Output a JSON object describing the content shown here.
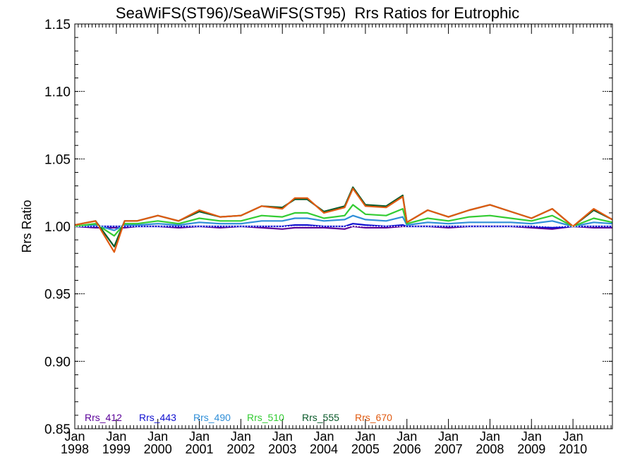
{
  "chart_data": {
    "type": "line",
    "title": "SeaWiFS(ST96)/SeaWiFS(ST95)  Rrs Ratios for Eutrophic",
    "xlabel": "",
    "ylabel": "Rrs Ratio",
    "ylim": [
      0.85,
      1.15
    ],
    "xlim": [
      1998.0,
      2010.95
    ],
    "yticks": [
      "0.85",
      "0.90",
      "0.95",
      "1.00",
      "1.05",
      "1.10",
      "1.15"
    ],
    "xticks": [
      {
        "top": "Jan",
        "bottom": "1998",
        "x": 1998
      },
      {
        "top": "Jan",
        "bottom": "1999",
        "x": 1999
      },
      {
        "top": "Jan",
        "bottom": "2000",
        "x": 2000
      },
      {
        "top": "Jan",
        "bottom": "2001",
        "x": 2001
      },
      {
        "top": "Jan",
        "bottom": "2002",
        "x": 2002
      },
      {
        "top": "Jan",
        "bottom": "2003",
        "x": 2003
      },
      {
        "top": "Jan",
        "bottom": "2004",
        "x": 2004
      },
      {
        "top": "Jan",
        "bottom": "2005",
        "x": 2005
      },
      {
        "top": "Jan",
        "bottom": "2006",
        "x": 2006
      },
      {
        "top": "Jan",
        "bottom": "2007",
        "x": 2007
      },
      {
        "top": "Jan",
        "bottom": "2008",
        "x": 2008
      },
      {
        "top": "Jan",
        "bottom": "2009",
        "x": 2009
      },
      {
        "top": "Jan",
        "bottom": "2010",
        "x": 2010
      }
    ],
    "reference_line": {
      "y": 1.0,
      "style": "dotted",
      "color": "#ffffff"
    },
    "legend_placement": "bottom-left",
    "series": [
      {
        "name": "Rrs_412",
        "color": "#5a0099",
        "points": [
          [
            1998.0,
            1.0
          ],
          [
            1998.5,
            0.999
          ],
          [
            1998.95,
            0.999
          ],
          [
            1999.2,
            0.999
          ],
          [
            1999.5,
            1.0
          ],
          [
            2000.0,
            1.0
          ],
          [
            2000.5,
            0.999
          ],
          [
            2001.0,
            1.0
          ],
          [
            2001.5,
            0.999
          ],
          [
            2002.0,
            1.0
          ],
          [
            2002.5,
            0.999
          ],
          [
            2003.0,
            0.998
          ],
          [
            2003.3,
            0.999
          ],
          [
            2003.6,
            0.999
          ],
          [
            2004.0,
            0.999
          ],
          [
            2004.5,
            0.998
          ],
          [
            2004.7,
            1.0
          ],
          [
            2005.0,
            0.999
          ],
          [
            2005.5,
            0.999
          ],
          [
            2005.9,
            1.0
          ],
          [
            2006.0,
            1.0
          ],
          [
            2006.5,
            1.0
          ],
          [
            2007.0,
            0.999
          ],
          [
            2007.5,
            1.0
          ],
          [
            2008.0,
            1.0
          ],
          [
            2008.5,
            1.0
          ],
          [
            2009.0,
            0.999
          ],
          [
            2009.5,
            0.998
          ],
          [
            2010.0,
            1.0
          ],
          [
            2010.5,
            0.999
          ],
          [
            2010.95,
            0.999
          ]
        ]
      },
      {
        "name": "Rrs_443",
        "color": "#1010d0",
        "points": [
          [
            1998.0,
            1.0
          ],
          [
            1998.5,
            1.0
          ],
          [
            1998.95,
            1.0
          ],
          [
            1999.2,
            1.0
          ],
          [
            1999.5,
            1.0
          ],
          [
            2000.0,
            1.0
          ],
          [
            2000.5,
            1.0
          ],
          [
            2001.0,
            1.0
          ],
          [
            2001.5,
            1.0
          ],
          [
            2002.0,
            1.0
          ],
          [
            2002.5,
            1.0
          ],
          [
            2003.0,
            1.0
          ],
          [
            2003.3,
            1.001
          ],
          [
            2003.6,
            1.001
          ],
          [
            2004.0,
            1.0
          ],
          [
            2004.5,
            1.0
          ],
          [
            2004.7,
            1.002
          ],
          [
            2005.0,
            1.001
          ],
          [
            2005.5,
            1.0
          ],
          [
            2005.9,
            1.001
          ],
          [
            2006.0,
            1.0
          ],
          [
            2006.5,
            1.0
          ],
          [
            2007.0,
            1.0
          ],
          [
            2007.5,
            1.0
          ],
          [
            2008.0,
            1.0
          ],
          [
            2008.5,
            1.0
          ],
          [
            2009.0,
            1.0
          ],
          [
            2009.5,
            0.999
          ],
          [
            2010.0,
            1.0
          ],
          [
            2010.5,
            1.0
          ],
          [
            2010.95,
            1.0
          ]
        ]
      },
      {
        "name": "Rrs_490",
        "color": "#2f8fd8",
        "points": [
          [
            1998.0,
            1.0
          ],
          [
            1998.5,
            1.001
          ],
          [
            1998.95,
            0.997
          ],
          [
            1999.2,
            1.001
          ],
          [
            1999.5,
            1.001
          ],
          [
            2000.0,
            1.002
          ],
          [
            2000.5,
            1.001
          ],
          [
            2001.0,
            1.003
          ],
          [
            2001.5,
            1.002
          ],
          [
            2002.0,
            1.002
          ],
          [
            2002.5,
            1.004
          ],
          [
            2003.0,
            1.004
          ],
          [
            2003.3,
            1.006
          ],
          [
            2003.6,
            1.006
          ],
          [
            2004.0,
            1.004
          ],
          [
            2004.5,
            1.005
          ],
          [
            2004.7,
            1.008
          ],
          [
            2005.0,
            1.005
          ],
          [
            2005.5,
            1.004
          ],
          [
            2005.9,
            1.007
          ],
          [
            2006.0,
            1.001
          ],
          [
            2006.5,
            1.003
          ],
          [
            2007.0,
            1.002
          ],
          [
            2007.5,
            1.003
          ],
          [
            2008.0,
            1.003
          ],
          [
            2008.5,
            1.003
          ],
          [
            2009.0,
            1.002
          ],
          [
            2009.5,
            1.004
          ],
          [
            2010.0,
            1.0
          ],
          [
            2010.5,
            1.003
          ],
          [
            2010.95,
            1.002
          ]
        ]
      },
      {
        "name": "Rrs_510",
        "color": "#33cc33",
        "points": [
          [
            1998.0,
            1.0
          ],
          [
            1998.5,
            1.002
          ],
          [
            1998.95,
            0.993
          ],
          [
            1999.2,
            1.002
          ],
          [
            1999.5,
            1.002
          ],
          [
            2000.0,
            1.004
          ],
          [
            2000.5,
            1.002
          ],
          [
            2001.0,
            1.006
          ],
          [
            2001.5,
            1.004
          ],
          [
            2002.0,
            1.004
          ],
          [
            2002.5,
            1.008
          ],
          [
            2003.0,
            1.007
          ],
          [
            2003.3,
            1.01
          ],
          [
            2003.6,
            1.01
          ],
          [
            2004.0,
            1.006
          ],
          [
            2004.5,
            1.008
          ],
          [
            2004.7,
            1.016
          ],
          [
            2005.0,
            1.009
          ],
          [
            2005.5,
            1.008
          ],
          [
            2005.9,
            1.013
          ],
          [
            2006.0,
            1.002
          ],
          [
            2006.5,
            1.006
          ],
          [
            2007.0,
            1.004
          ],
          [
            2007.5,
            1.007
          ],
          [
            2008.0,
            1.008
          ],
          [
            2008.5,
            1.006
          ],
          [
            2009.0,
            1.004
          ],
          [
            2009.5,
            1.008
          ],
          [
            2010.0,
            1.0
          ],
          [
            2010.5,
            1.006
          ],
          [
            2010.95,
            1.003
          ]
        ]
      },
      {
        "name": "Rrs_555",
        "color": "#0a5a2a",
        "points": [
          [
            1998.0,
            1.001
          ],
          [
            1998.5,
            1.004
          ],
          [
            1998.95,
            0.985
          ],
          [
            1999.2,
            1.004
          ],
          [
            1999.5,
            1.004
          ],
          [
            2000.0,
            1.008
          ],
          [
            2000.5,
            1.004
          ],
          [
            2001.0,
            1.011
          ],
          [
            2001.5,
            1.007
          ],
          [
            2002.0,
            1.008
          ],
          [
            2002.5,
            1.015
          ],
          [
            2003.0,
            1.014
          ],
          [
            2003.3,
            1.02
          ],
          [
            2003.6,
            1.02
          ],
          [
            2004.0,
            1.011
          ],
          [
            2004.5,
            1.015
          ],
          [
            2004.7,
            1.029
          ],
          [
            2005.0,
            1.016
          ],
          [
            2005.5,
            1.015
          ],
          [
            2005.9,
            1.023
          ],
          [
            2006.0,
            1.003
          ],
          [
            2006.5,
            1.012
          ],
          [
            2007.0,
            1.007
          ],
          [
            2007.5,
            1.012
          ],
          [
            2008.0,
            1.016
          ],
          [
            2008.5,
            1.011
          ],
          [
            2009.0,
            1.006
          ],
          [
            2009.5,
            1.013
          ],
          [
            2010.0,
            1.0
          ],
          [
            2010.5,
            1.012
          ],
          [
            2010.95,
            1.005
          ]
        ]
      },
      {
        "name": "Rrs_670",
        "color": "#e05a10",
        "points": [
          [
            1998.0,
            1.001
          ],
          [
            1998.5,
            1.004
          ],
          [
            1998.95,
            0.981
          ],
          [
            1999.2,
            1.004
          ],
          [
            1999.5,
            1.004
          ],
          [
            2000.0,
            1.008
          ],
          [
            2000.5,
            1.004
          ],
          [
            2001.0,
            1.012
          ],
          [
            2001.5,
            1.007
          ],
          [
            2002.0,
            1.008
          ],
          [
            2002.5,
            1.015
          ],
          [
            2003.0,
            1.013
          ],
          [
            2003.3,
            1.021
          ],
          [
            2003.6,
            1.021
          ],
          [
            2004.0,
            1.01
          ],
          [
            2004.5,
            1.014
          ],
          [
            2004.7,
            1.028
          ],
          [
            2005.0,
            1.015
          ],
          [
            2005.5,
            1.014
          ],
          [
            2005.9,
            1.022
          ],
          [
            2006.0,
            1.003
          ],
          [
            2006.5,
            1.012
          ],
          [
            2007.0,
            1.007
          ],
          [
            2007.5,
            1.012
          ],
          [
            2008.0,
            1.016
          ],
          [
            2008.5,
            1.011
          ],
          [
            2009.0,
            1.006
          ],
          [
            2009.5,
            1.013
          ],
          [
            2010.0,
            1.0
          ],
          [
            2010.5,
            1.013
          ],
          [
            2010.95,
            1.005
          ]
        ]
      }
    ]
  }
}
